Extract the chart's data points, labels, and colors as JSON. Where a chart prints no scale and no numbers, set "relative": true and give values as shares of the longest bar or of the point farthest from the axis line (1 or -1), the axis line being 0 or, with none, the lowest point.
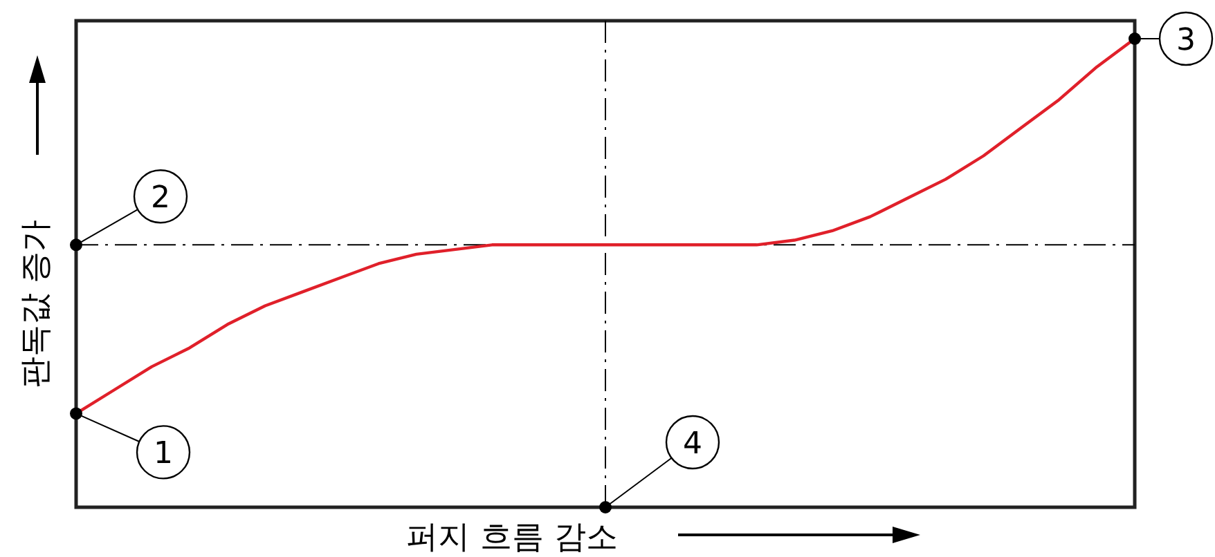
{
  "chart_data": {
    "type": "line",
    "relative": true,
    "xlabel": "퍼지 흐름 감소",
    "ylabel": "판독값 증가",
    "categories": [
      null,
      null,
      null,
      null,
      null,
      null,
      null,
      null,
      null,
      null,
      null,
      null,
      null,
      null,
      null,
      null,
      null,
      null,
      null,
      null,
      null,
      null,
      null,
      null,
      null,
      null,
      null,
      null,
      null
    ],
    "series": [
      {
        "color": "#e0202a",
        "values": [
          0.2,
          0.25,
          0.3,
          0.34,
          0.39,
          0.43,
          0.46,
          0.49,
          0.52,
          0.54,
          0.55,
          0.56,
          0.56,
          0.56,
          0.56,
          0.56,
          0.56,
          0.56,
          0.56,
          0.57,
          0.59,
          0.62,
          0.66,
          0.7,
          0.75,
          0.81,
          0.87,
          0.94,
          1.0
        ]
      }
    ],
    "ref_lines": [
      {
        "axis": "y",
        "value": 0.56,
        "color": "#000000",
        "line_style": "dashed"
      }
    ],
    "annotations": [
      "1",
      "2",
      "3",
      "4"
    ],
    "marker": "none"
  }
}
